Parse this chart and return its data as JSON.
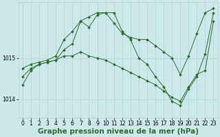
{
  "background_color": "#cce8ea",
  "plot_bg_color": "#cce8ea",
  "line_color": "#2d6a2d",
  "grid_color": "#b0d0d2",
  "xlabel": "Graphe pression niveau de la mer (hPa)",
  "xlabel_fontsize": 7.5,
  "tick_fontsize": 5.5,
  "ylim": [
    1013.55,
    1016.35
  ],
  "yticks": [
    1014.0,
    1015.0
  ],
  "xlim": [
    -0.5,
    23.5
  ],
  "series": [
    {
      "x": [
        0,
        1,
        2,
        3,
        4,
        5,
        6,
        7,
        8,
        9,
        10,
        11,
        12,
        13,
        14,
        15,
        16,
        17,
        18,
        19,
        20,
        21,
        22,
        23
      ],
      "y": [
        1014.75,
        1014.85,
        1014.9,
        1014.95,
        1015.05,
        1015.45,
        1015.65,
        1015.9,
        1016.0,
        1016.1,
        1016.1,
        1015.85,
        1015.6,
        1015.5,
        1015.45,
        1015.45,
        1015.3,
        1015.15,
        1015.0,
        1014.6,
        1015.05,
        1015.6,
        1016.1,
        1016.2
      ]
    },
    {
      "x": [
        0,
        1,
        2,
        3,
        4,
        5,
        6,
        7,
        8,
        9,
        10,
        11,
        12,
        13,
        14,
        15,
        16,
        17,
        18,
        19,
        20,
        21,
        22,
        23
      ],
      "y": [
        1014.55,
        1014.75,
        1014.85,
        1014.9,
        1014.95,
        1015.2,
        1015.35,
        1015.9,
        1015.75,
        1016.05,
        1016.1,
        1016.1,
        1015.65,
        1015.45,
        1015.0,
        1014.85,
        1014.55,
        1014.3,
        1013.95,
        1013.85,
        1014.25,
        1014.55,
        1015.1,
        1016.1
      ]
    },
    {
      "x": [
        0,
        1,
        2,
        3,
        4,
        5,
        6,
        7,
        8,
        9,
        10,
        11,
        12,
        13,
        14,
        15,
        16,
        17,
        18,
        19,
        20,
        21,
        22,
        23
      ],
      "y": [
        1014.35,
        1014.7,
        1014.85,
        1014.9,
        1014.95,
        1015.05,
        1015.05,
        1015.15,
        1015.05,
        1015.0,
        1014.95,
        1014.85,
        1014.75,
        1014.65,
        1014.55,
        1014.45,
        1014.35,
        1014.2,
        1014.05,
        1013.95,
        1014.3,
        1014.6,
        1014.7,
        1015.9
      ]
    }
  ]
}
